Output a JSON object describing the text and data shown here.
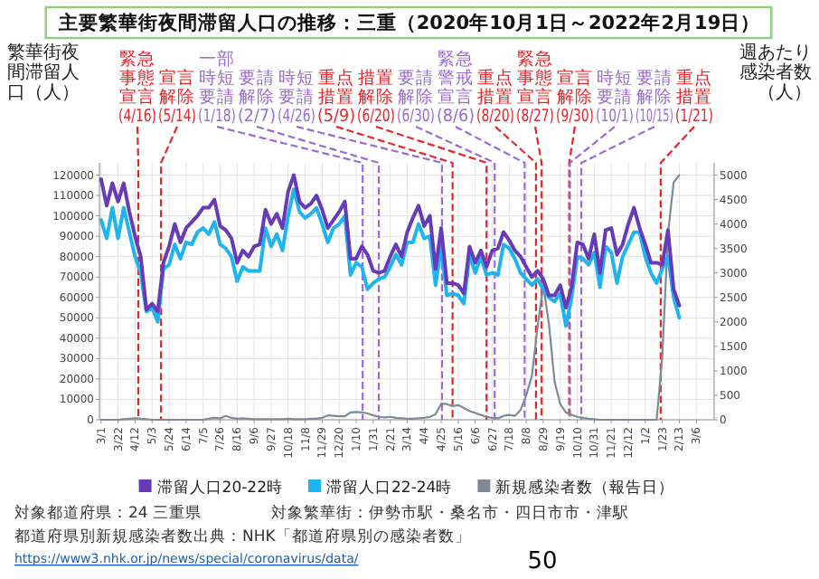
{
  "chart_data": {
    "type": "line",
    "title": "主要繁華街夜間滞留人口の推移：三重（2020年10月1日～2022年2月19日）",
    "ylabel": "繁華街夜間滞留人口（人）",
    "y2label": "週あたり感染者数（人）",
    "x": [
      "2020-03-01",
      "2020-03-08",
      "2020-03-15",
      "2020-03-22",
      "2020-03-29",
      "2020-04-05",
      "2020-04-12",
      "2020-04-19",
      "2020-04-26",
      "2020-05-03",
      "2020-05-10",
      "2020-05-17",
      "2020-05-24",
      "2020-05-31",
      "2020-06-07",
      "2020-06-14",
      "2020-06-21",
      "2020-06-28",
      "2020-07-05",
      "2020-07-12",
      "2020-07-19",
      "2020-07-26",
      "2020-08-02",
      "2020-08-09",
      "2020-08-16",
      "2020-08-23",
      "2020-08-30",
      "2020-09-06",
      "2020-09-13",
      "2020-09-20",
      "2020-09-27",
      "2020-10-04",
      "2020-10-11",
      "2020-10-18",
      "2020-10-25",
      "2020-11-01",
      "2020-11-08",
      "2020-11-15",
      "2020-11-22",
      "2020-11-29",
      "2020-12-06",
      "2020-12-13",
      "2020-12-20",
      "2020-12-27",
      "2021-01-03",
      "2021-01-10",
      "2021-01-17",
      "2021-01-24",
      "2021-01-31",
      "2021-02-07",
      "2021-02-14",
      "2021-02-21",
      "2021-02-28",
      "2021-03-07",
      "2021-03-14",
      "2021-03-21",
      "2021-03-28",
      "2021-04-04",
      "2021-04-11",
      "2021-04-18",
      "2021-04-25",
      "2021-05-02",
      "2021-05-09",
      "2021-05-16",
      "2021-05-23",
      "2021-05-30",
      "2021-06-06",
      "2021-06-13",
      "2021-06-20",
      "2021-06-27",
      "2021-07-04",
      "2021-07-11",
      "2021-07-18",
      "2021-07-25",
      "2021-08-01",
      "2021-08-08",
      "2021-08-15",
      "2021-08-22",
      "2021-08-29",
      "2021-09-05",
      "2021-09-12",
      "2021-09-19",
      "2021-09-26",
      "2021-10-03",
      "2021-10-10",
      "2021-10-17",
      "2021-10-24",
      "2021-10-31",
      "2021-11-07",
      "2021-11-14",
      "2021-11-21",
      "2021-11-28",
      "2021-12-05",
      "2021-12-12",
      "2021-12-19",
      "2021-12-26",
      "2022-01-02",
      "2022-01-09",
      "2022-01-16",
      "2022-01-23",
      "2022-01-30",
      "2022-02-06",
      "2022-02-13"
    ],
    "series": [
      {
        "name": "滞留人口20-22時",
        "color": "#673ab7",
        "values": [
          118000,
          105000,
          116000,
          107000,
          116000,
          102000,
          90000,
          80000,
          54000,
          57000,
          53000,
          77000,
          85000,
          96000,
          87000,
          94000,
          97000,
          100000,
          104000,
          104000,
          108000,
          95000,
          93000,
          89000,
          77000,
          83000,
          80000,
          85000,
          86000,
          103000,
          96000,
          101000,
          94000,
          112000,
          120000,
          107000,
          104000,
          106000,
          110000,
          103000,
          94000,
          98000,
          102000,
          107000,
          79000,
          79000,
          85000,
          81000,
          73000,
          72000,
          73000,
          80000,
          86000,
          80000,
          92000,
          99000,
          105000,
          95000,
          100000,
          74000,
          94000,
          67000,
          67000,
          66000,
          62000,
          85000,
          77000,
          83000,
          75000,
          83000,
          84000,
          92000,
          88000,
          83000,
          80000,
          75000,
          70000,
          73000,
          69000,
          61000,
          61000,
          66000,
          55000,
          65000,
          87000,
          86000,
          79000,
          91000,
          72000,
          93000,
          94000,
          81000,
          86000,
          96000,
          104000,
          94000,
          86000,
          77000,
          77000,
          76000,
          93000,
          64000,
          56000
        ]
      },
      {
        "name": "滞留人口22-24時",
        "color": "#1eb4f0",
        "values": [
          98000,
          89000,
          104000,
          89000,
          104000,
          92000,
          80000,
          72000,
          53000,
          55000,
          48000,
          74000,
          76000,
          86000,
          79000,
          87000,
          86000,
          92000,
          94000,
          91000,
          97000,
          86000,
          84000,
          80000,
          68000,
          75000,
          73000,
          73000,
          73000,
          94000,
          85000,
          91000,
          83000,
          100000,
          113000,
          102000,
          99000,
          101000,
          104000,
          96000,
          87000,
          94000,
          96000,
          100000,
          71000,
          77000,
          75000,
          64000,
          67000,
          69000,
          70000,
          75000,
          81000,
          76000,
          87000,
          87000,
          96000,
          89000,
          90000,
          66000,
          85000,
          61000,
          62000,
          61000,
          57000,
          81000,
          72000,
          80000,
          71000,
          72000,
          71000,
          86000,
          84000,
          79000,
          72000,
          69000,
          66000,
          69000,
          64000,
          60000,
          58000,
          62000,
          46000,
          60000,
          80000,
          79000,
          76000,
          82000,
          65000,
          85000,
          82000,
          67000,
          80000,
          86000,
          92000,
          92000,
          80000,
          72000,
          67000,
          74000,
          80000,
          60000,
          50000
        ]
      },
      {
        "name": "新規感染者数（報告日）",
        "color": "#7f8a96",
        "axis": "y2",
        "values": [
          0,
          0,
          0,
          0,
          10,
          20,
          30,
          20,
          10,
          0,
          0,
          0,
          0,
          0,
          0,
          0,
          0,
          0,
          0,
          20,
          40,
          30,
          80,
          40,
          20,
          30,
          20,
          10,
          10,
          10,
          10,
          10,
          10,
          20,
          10,
          10,
          10,
          20,
          20,
          40,
          90,
          80,
          70,
          70,
          150,
          160,
          150,
          130,
          90,
          60,
          50,
          60,
          40,
          30,
          20,
          20,
          30,
          40,
          60,
          110,
          330,
          320,
          280,
          300,
          240,
          180,
          140,
          100,
          60,
          40,
          30,
          80,
          100,
          80,
          200,
          500,
          900,
          1900,
          2750,
          1960,
          780,
          320,
          150,
          100,
          60,
          40,
          20,
          10,
          0,
          0,
          0,
          0,
          0,
          0,
          0,
          0,
          0,
          0,
          0,
          1300,
          3800,
          4850,
          5000
        ]
      }
    ],
    "xlim": [
      "2020-02-28",
      "2022-03-28"
    ],
    "xticks": [
      {
        "value": "2020-03-01",
        "label": "3/1"
      },
      {
        "value": "2020-03-22",
        "label": "3/22"
      },
      {
        "value": "2020-04-12",
        "label": "4/12"
      },
      {
        "value": "2020-05-03",
        "label": "5/3"
      },
      {
        "value": "2020-05-24",
        "label": "5/24"
      },
      {
        "value": "2020-06-14",
        "label": "6/14"
      },
      {
        "value": "2020-07-05",
        "label": "7/5"
      },
      {
        "value": "2020-07-26",
        "label": "7/26"
      },
      {
        "value": "2020-08-16",
        "label": "8/16"
      },
      {
        "value": "2020-09-06",
        "label": "9/6"
      },
      {
        "value": "2020-09-27",
        "label": "9/27"
      },
      {
        "value": "2020-10-18",
        "label": "10/18"
      },
      {
        "value": "2020-11-08",
        "label": "11/8"
      },
      {
        "value": "2020-11-29",
        "label": "11/29"
      },
      {
        "value": "2020-12-20",
        "label": "12/20"
      },
      {
        "value": "2021-01-10",
        "label": "1/10"
      },
      {
        "value": "2021-01-31",
        "label": "1/31"
      },
      {
        "value": "2021-02-21",
        "label": "2/21"
      },
      {
        "value": "2021-03-14",
        "label": "3/14"
      },
      {
        "value": "2021-04-04",
        "label": "4/4"
      },
      {
        "value": "2021-04-25",
        "label": "4/25"
      },
      {
        "value": "2021-05-16",
        "label": "5/16"
      },
      {
        "value": "2021-06-06",
        "label": "6/6"
      },
      {
        "value": "2021-06-27",
        "label": "6/27"
      },
      {
        "value": "2021-07-18",
        "label": "7/18"
      },
      {
        "value": "2021-08-08",
        "label": "8/8"
      },
      {
        "value": "2021-08-29",
        "label": "8/29"
      },
      {
        "value": "2021-09-19",
        "label": "9/19"
      },
      {
        "value": "2021-10-10",
        "label": "10/10"
      },
      {
        "value": "2021-10-31",
        "label": "10/31"
      },
      {
        "value": "2021-11-21",
        "label": "11/21"
      },
      {
        "value": "2021-12-12",
        "label": "12/12"
      },
      {
        "value": "2022-01-02",
        "label": "1/2"
      },
      {
        "value": "2022-01-23",
        "label": "1/23"
      },
      {
        "value": "2022-02-13",
        "label": "2/13"
      },
      {
        "value": "2022-03-06",
        "label": "3/6"
      }
    ],
    "ylim": [
      0,
      126000
    ],
    "yticks": [
      0,
      10000,
      20000,
      30000,
      40000,
      50000,
      60000,
      70000,
      80000,
      90000,
      100000,
      110000,
      120000
    ],
    "y2lim": [
      0,
      5250
    ],
    "y2ticks": [
      0,
      500,
      1000,
      1500,
      2000,
      2500,
      3000,
      3500,
      4000,
      4500,
      5000
    ],
    "grid": true,
    "legend": "bottom",
    "ref_lines": [
      {
        "axis": "x",
        "value": "2020-04-16",
        "label": "緊急事態宣言(4/16)",
        "color": "#e8232a",
        "line_style": "dashed"
      },
      {
        "axis": "x",
        "value": "2020-05-14",
        "label": "宣言解除(5/14)",
        "color": "#e8232a",
        "line_style": "dashed"
      },
      {
        "axis": "x",
        "value": "2021-01-18",
        "label": "一部時短要請(1/18)",
        "color": "#9a6ad6",
        "line_style": "dashed"
      },
      {
        "axis": "x",
        "value": "2021-02-07",
        "label": "要請解除(2/7)",
        "color": "#9a6ad6",
        "line_style": "dashed"
      },
      {
        "axis": "x",
        "value": "2021-04-26",
        "label": "時短要請(4/26)",
        "color": "#9a6ad6",
        "line_style": "dashed"
      },
      {
        "axis": "x",
        "value": "2021-05-09",
        "label": "重点措置(5/9)",
        "color": "#e8232a",
        "line_style": "dashed"
      },
      {
        "axis": "x",
        "value": "2021-06-20",
        "label": "措置解除(6/20)",
        "color": "#e8232a",
        "line_style": "dashed"
      },
      {
        "axis": "x",
        "value": "2021-06-30",
        "label": "要請解除(6/30)",
        "color": "#9a6ad6",
        "line_style": "dashed"
      },
      {
        "axis": "x",
        "value": "2021-08-06",
        "label": "緊急警戒宣言(8/6)",
        "color": "#9a6ad6",
        "line_style": "dashed"
      },
      {
        "axis": "x",
        "value": "2021-08-20",
        "label": "重点措置(8/20)",
        "color": "#e8232a",
        "line_style": "dashed"
      },
      {
        "axis": "x",
        "value": "2021-08-27",
        "label": "緊急事態宣言(8/27)",
        "color": "#e8232a",
        "line_style": "dashed"
      },
      {
        "axis": "x",
        "value": "2021-09-30",
        "label": "宣言解除(9/30)",
        "color": "#e8232a",
        "line_style": "dashed"
      },
      {
        "axis": "x",
        "value": "2021-10-01",
        "label": "時短要請(10/1)",
        "color": "#9a6ad6",
        "line_style": "dashed"
      },
      {
        "axis": "x",
        "value": "2021-10-15",
        "label": "要請解除(10/15)",
        "color": "#9a6ad6",
        "line_style": "dashed"
      },
      {
        "axis": "x",
        "value": "2022-01-21",
        "label": "重点措置(1/21)",
        "color": "#e8232a",
        "line_style": "dashed"
      }
    ],
    "annotations": [
      "対象都道府県：24 三重県",
      "対象繁華街：伊勢市駅・桑名市・四日市市・津駅",
      "都道府県別新規感染者数出典：NHK「都道府県別の感染者数」",
      "https://www3.nhk.or.jp/news/special/coronavirus/data/",
      "50"
    ]
  }
}
